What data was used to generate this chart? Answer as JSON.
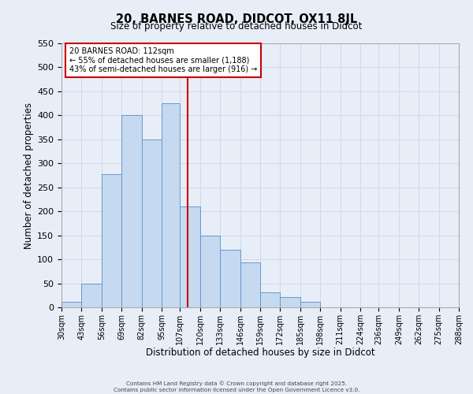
{
  "title": "20, BARNES ROAD, DIDCOT, OX11 8JL",
  "subtitle": "Size of property relative to detached houses in Didcot",
  "xlabel": "Distribution of detached houses by size in Didcot",
  "ylabel": "Number of detached properties",
  "bin_labels": [
    "30sqm",
    "43sqm",
    "56sqm",
    "69sqm",
    "82sqm",
    "95sqm",
    "107sqm",
    "120sqm",
    "133sqm",
    "146sqm",
    "159sqm",
    "172sqm",
    "185sqm",
    "198sqm",
    "211sqm",
    "224sqm",
    "236sqm",
    "249sqm",
    "262sqm",
    "275sqm",
    "288sqm"
  ],
  "bar_values": [
    12,
    50,
    278,
    400,
    350,
    425,
    210,
    150,
    120,
    93,
    31,
    22,
    12,
    0,
    0,
    0,
    0,
    0,
    0,
    0
  ],
  "bin_edges": [
    30,
    43,
    56,
    69,
    82,
    95,
    107,
    120,
    133,
    146,
    159,
    172,
    185,
    198,
    211,
    224,
    236,
    249,
    262,
    275,
    288
  ],
  "bar_color": "#c5d9f0",
  "bar_edge_color": "#6699cc",
  "vline_x": 112,
  "vline_color": "#cc0000",
  "ylim": [
    0,
    550
  ],
  "yticks": [
    0,
    50,
    100,
    150,
    200,
    250,
    300,
    350,
    400,
    450,
    500,
    550
  ],
  "annotation_title": "20 BARNES ROAD: 112sqm",
  "annotation_line1": "← 55% of detached houses are smaller (1,188)",
  "annotation_line2": "43% of semi-detached houses are larger (916) →",
  "annotation_box_color": "#ffffff",
  "annotation_box_edge": "#cc0000",
  "grid_color": "#d0d8e8",
  "background_color": "#e8eef8",
  "footer1": "Contains HM Land Registry data © Crown copyright and database right 2025.",
  "footer2": "Contains public sector information licensed under the Open Government Licence v3.0."
}
